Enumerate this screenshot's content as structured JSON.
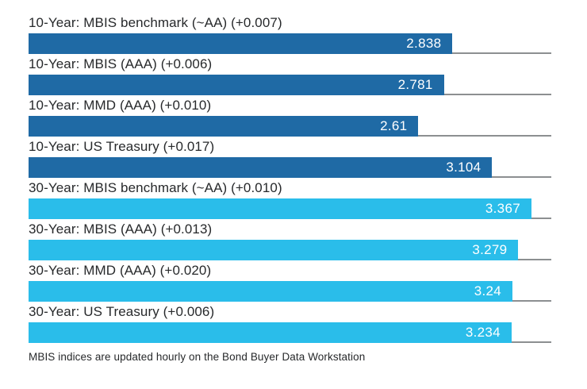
{
  "chart_data": {
    "type": "bar",
    "orientation": "horizontal",
    "title": "",
    "xlabel": "",
    "ylabel": "",
    "xlim": [
      0,
      3.5
    ],
    "grid": false,
    "legend": "none",
    "bar_colors": {
      "ten_year": "#1f6aa5",
      "thirty_year": "#2abdea"
    },
    "separator_color": "#8c8f91",
    "rows": [
      {
        "label": "10-Year: MBIS benchmark (~AA) (+0.007)",
        "value": 2.838,
        "display_value": "2.838",
        "series": "10-Year",
        "change": "+0.007",
        "color": "#1f6aa5"
      },
      {
        "label": "10-Year: MBIS (AAA) (+0.006)",
        "value": 2.781,
        "display_value": "2.781",
        "series": "10-Year",
        "change": "+0.006",
        "color": "#1f6aa5"
      },
      {
        "label": "10-Year: MMD (AAA) (+0.010)",
        "value": 2.61,
        "display_value": "2.61",
        "series": "10-Year",
        "change": "+0.010",
        "color": "#1f6aa5"
      },
      {
        "label": "10-Year: US Treasury (+0.017)",
        "value": 3.104,
        "display_value": "3.104",
        "series": "10-Year",
        "change": "+0.017",
        "color": "#1f6aa5"
      },
      {
        "label": "30-Year: MBIS benchmark (~AA) (+0.010)",
        "value": 3.367,
        "display_value": "3.367",
        "series": "30-Year",
        "change": "+0.010",
        "color": "#2abdea"
      },
      {
        "label": "30-Year: MBIS (AAA) (+0.013)",
        "value": 3.279,
        "display_value": "3.279",
        "series": "30-Year",
        "change": "+0.013",
        "color": "#2abdea"
      },
      {
        "label": "30-Year: MMD (AAA) (+0.020)",
        "value": 3.24,
        "display_value": "3.24",
        "series": "30-Year",
        "change": "+0.020",
        "color": "#2abdea"
      },
      {
        "label": "30-Year: US Treasury (+0.006)",
        "value": 3.234,
        "display_value": "3.234",
        "series": "30-Year",
        "change": "+0.006",
        "color": "#2abdea"
      }
    ]
  },
  "footer": {
    "note": "MBIS indices are updated hourly on the Bond Buyer Data Workstation"
  }
}
